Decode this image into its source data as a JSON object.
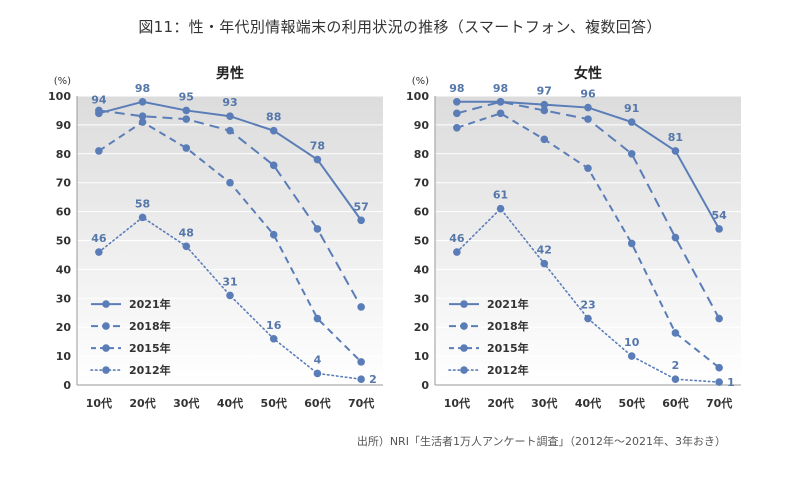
{
  "title": "図11：性・年代別情報端末の利用状況の推移（スマートフォン、複数回答）",
  "source": "出所）NRI「生活者1万人アンケート調査」（2012年〜2021年、3年おき）",
  "unit_label": "(%)",
  "colors": {
    "series": "#5a7db8",
    "label": "#5577aa",
    "plot_bg_top": "#dcdcdc",
    "plot_bg_bottom": "#ffffff"
  },
  "chart_data": [
    {
      "type": "line",
      "title": "男性",
      "categories": [
        "10代",
        "20代",
        "30代",
        "40代",
        "50代",
        "60代",
        "70代"
      ],
      "ylim": [
        0,
        100
      ],
      "yticks": [
        0,
        10,
        20,
        30,
        40,
        50,
        60,
        70,
        80,
        90,
        100
      ],
      "legend_position": "bottom-left",
      "series": [
        {
          "name": "2021年",
          "style": "solid",
          "values": [
            94,
            98,
            95,
            93,
            88,
            78,
            57
          ],
          "labeled": true
        },
        {
          "name": "2018年",
          "style": "dashed-long",
          "values": [
            95,
            93,
            92,
            88,
            76,
            54,
            27
          ],
          "labeled": false
        },
        {
          "name": "2015年",
          "style": "dashed",
          "values": [
            81,
            91,
            82,
            70,
            52,
            23,
            8
          ],
          "labeled": false
        },
        {
          "name": "2012年",
          "style": "dotted",
          "values": [
            46,
            58,
            48,
            31,
            16,
            4,
            2
          ],
          "labeled": true
        }
      ]
    },
    {
      "type": "line",
      "title": "女性",
      "categories": [
        "10代",
        "20代",
        "30代",
        "40代",
        "50代",
        "60代",
        "70代"
      ],
      "ylim": [
        0,
        100
      ],
      "yticks": [
        0,
        10,
        20,
        30,
        40,
        50,
        60,
        70,
        80,
        90,
        100
      ],
      "legend_position": "bottom-left",
      "series": [
        {
          "name": "2021年",
          "style": "solid",
          "values": [
            98,
            98,
            97,
            96,
            91,
            81,
            54
          ],
          "labeled": true
        },
        {
          "name": "2018年",
          "style": "dashed-long",
          "values": [
            94,
            98,
            95,
            92,
            80,
            51,
            23
          ],
          "labeled": false
        },
        {
          "name": "2015年",
          "style": "dashed",
          "values": [
            89,
            94,
            85,
            75,
            49,
            18,
            6
          ],
          "labeled": false
        },
        {
          "name": "2012年",
          "style": "dotted",
          "values": [
            46,
            61,
            42,
            23,
            10,
            2,
            1
          ],
          "labeled": true
        }
      ]
    }
  ]
}
